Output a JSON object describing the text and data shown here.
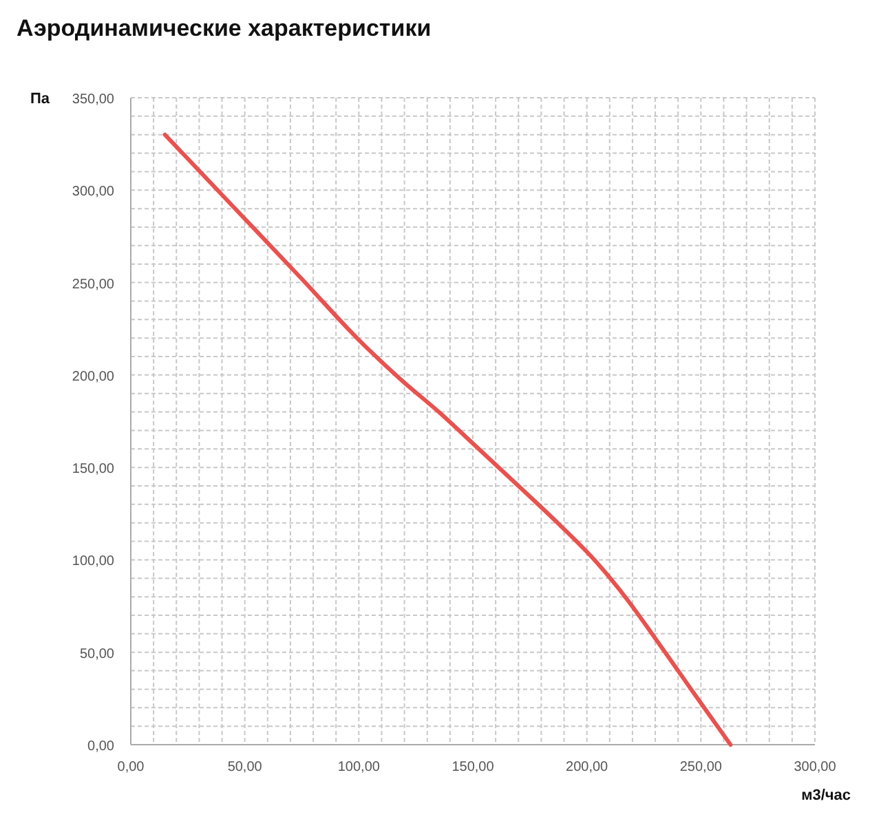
{
  "chart_data": {
    "type": "line",
    "title": "Аэродинамические характеристики",
    "xlabel": "м3/час",
    "ylabel": "Па",
    "x": [
      15,
      45,
      75,
      100,
      118,
      136,
      150,
      170,
      188,
      204,
      218,
      228,
      240,
      248,
      263
    ],
    "series": [
      {
        "color": "#e8524f",
        "values": [
          330,
          291,
          252,
          219,
          198,
          179,
          163,
          140,
          119,
          99,
          78,
          61,
          40,
          26,
          0
        ]
      }
    ],
    "xlim": [
      0,
      300
    ],
    "ylim": [
      0,
      350
    ],
    "xticks": [
      {
        "value": 0,
        "label": "0,00"
      },
      {
        "value": 50,
        "label": "50,00"
      },
      {
        "value": 100,
        "label": "100,00"
      },
      {
        "value": 150,
        "label": "150,00"
      },
      {
        "value": 200,
        "label": "200,00"
      },
      {
        "value": 250,
        "label": "250,00"
      },
      {
        "value": 300,
        "label": "300,00"
      }
    ],
    "yticks": [
      {
        "value": 0,
        "label": "0,00"
      },
      {
        "value": 50,
        "label": "50,00"
      },
      {
        "value": 100,
        "label": "100,00"
      },
      {
        "value": 150,
        "label": "150,00"
      },
      {
        "value": 200,
        "label": "200,00"
      },
      {
        "value": 250,
        "label": "250,00"
      },
      {
        "value": 300,
        "label": "300,00"
      },
      {
        "value": 350,
        "label": "350,00"
      }
    ],
    "grid": true,
    "marker": "none",
    "line_style": "solid"
  }
}
